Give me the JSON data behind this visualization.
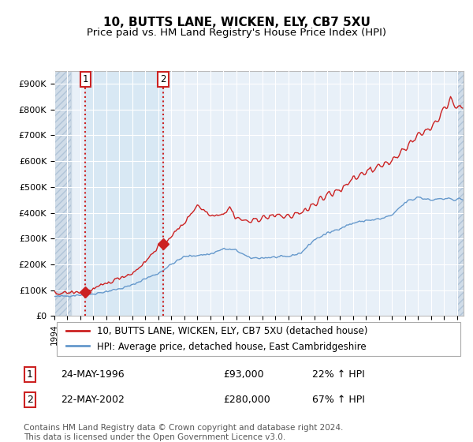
{
  "title": "10, BUTTS LANE, WICKEN, ELY, CB7 5XU",
  "subtitle": "Price paid vs. HM Land Registry's House Price Index (HPI)",
  "ylim": [
    0,
    950000
  ],
  "yticks": [
    0,
    100000,
    200000,
    300000,
    400000,
    500000,
    600000,
    700000,
    800000,
    900000
  ],
  "ytick_labels": [
    "£0",
    "£100K",
    "£200K",
    "£300K",
    "£400K",
    "£500K",
    "£600K",
    "£700K",
    "£800K",
    "£900K"
  ],
  "background_color": "#ffffff",
  "plot_bg_color": "#e8f0f8",
  "hatch_bg_color": "#d0dce8",
  "blue_band_color": "#d8e8f4",
  "grid_color": "#ffffff",
  "sale1_date": 1996.39,
  "sale1_price": 93000,
  "sale2_date": 2002.38,
  "sale2_price": 280000,
  "sale1_label": "1",
  "sale2_label": "2",
  "red_line_color": "#cc2222",
  "blue_line_color": "#6699cc",
  "sale_marker_color": "#cc2222",
  "dashed_line_color": "#cc2222",
  "legend_label1": "10, BUTTS LANE, WICKEN, ELY, CB7 5XU (detached house)",
  "legend_label2": "HPI: Average price, detached house, East Cambridgeshire",
  "table_row1": [
    "1",
    "24-MAY-1996",
    "£93,000",
    "22% ↑ HPI"
  ],
  "table_row2": [
    "2",
    "22-MAY-2002",
    "£280,000",
    "67% ↑ HPI"
  ],
  "footer": "Contains HM Land Registry data © Crown copyright and database right 2024.\nThis data is licensed under the Open Government Licence v3.0.",
  "title_fontsize": 11,
  "subtitle_fontsize": 9.5,
  "tick_fontsize": 8,
  "legend_fontsize": 8.5,
  "table_fontsize": 9,
  "footer_fontsize": 7.5,
  "xstart": 1994,
  "xend": 2025.5
}
